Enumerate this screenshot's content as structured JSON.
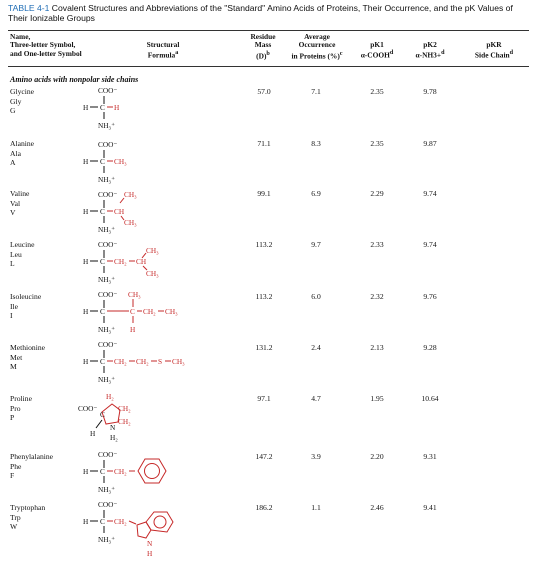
{
  "caption": {
    "label": "TABLE 4-1",
    "text": "Covalent Structures and Abbreviations of the \"Standard\" Amino Acids of Proteins, Their Occurrence, and the pK Values of Their Ionizable Groups"
  },
  "headers": {
    "name": [
      "Name,",
      "Three-letter Symbol,",
      "and One-letter Symbol"
    ],
    "formula": [
      "Structural",
      "Formula"
    ],
    "mass": [
      "Residue",
      "Mass",
      "(D)"
    ],
    "occurrence": [
      "Average",
      "Occurrence",
      "in Proteins (%)"
    ],
    "pk1": [
      "pK1",
      "α-COOH"
    ],
    "pk2": [
      "pK2",
      "α-NH3+"
    ],
    "pkr": [
      "pKR",
      "Side Chain"
    ]
  },
  "section_title": "Amino acids with nonpolar side chains",
  "rows": [
    {
      "name": "Glycine",
      "three": "Gly",
      "one": "G",
      "mass": "57.0",
      "occ": "7.1",
      "pk1": "2.35",
      "pk2": "9.78",
      "pkr": ""
    },
    {
      "name": "Alanine",
      "three": "Ala",
      "one": "A",
      "mass": "71.1",
      "occ": "8.3",
      "pk1": "2.35",
      "pk2": "9.87",
      "pkr": ""
    },
    {
      "name": "Valine",
      "three": "Val",
      "one": "V",
      "mass": "99.1",
      "occ": "6.9",
      "pk1": "2.29",
      "pk2": "9.74",
      "pkr": ""
    },
    {
      "name": "Leucine",
      "three": "Leu",
      "one": "L",
      "mass": "113.2",
      "occ": "9.7",
      "pk1": "2.33",
      "pk2": "9.74",
      "pkr": ""
    },
    {
      "name": "Isoleucine",
      "three": "Ile",
      "one": "I",
      "mass": "113.2",
      "occ": "6.0",
      "pk1": "2.32",
      "pk2": "9.76",
      "pkr": ""
    },
    {
      "name": "Methionine",
      "three": "Met",
      "one": "M",
      "mass": "131.2",
      "occ": "2.4",
      "pk1": "2.13",
      "pk2": "9.28",
      "pkr": ""
    },
    {
      "name": "Proline",
      "three": "Pro",
      "one": "P",
      "mass": "97.1",
      "occ": "4.7",
      "pk1": "1.95",
      "pk2": "10.64",
      "pkr": ""
    },
    {
      "name": "Phenylalanine",
      "three": "Phe",
      "one": "F",
      "mass": "147.2",
      "occ": "3.9",
      "pk1": "2.20",
      "pk2": "9.31",
      "pkr": ""
    },
    {
      "name": "Tryptophan",
      "three": "Trp",
      "one": "W",
      "mass": "186.2",
      "occ": "1.1",
      "pk1": "2.46",
      "pk2": "9.41",
      "pkr": ""
    }
  ],
  "structures": {
    "coo": "COO⁻",
    "nh3": "NH₃⁺",
    "h": "H",
    "c": "C",
    "ch": "CH",
    "ch2": "CH₂",
    "ch3": "CH₃",
    "s": "S",
    "n": "N",
    "h2": "H₂"
  },
  "colors": {
    "caption_label": "#1f6db5",
    "sidechain": "#c62828",
    "rule": "#333333"
  }
}
